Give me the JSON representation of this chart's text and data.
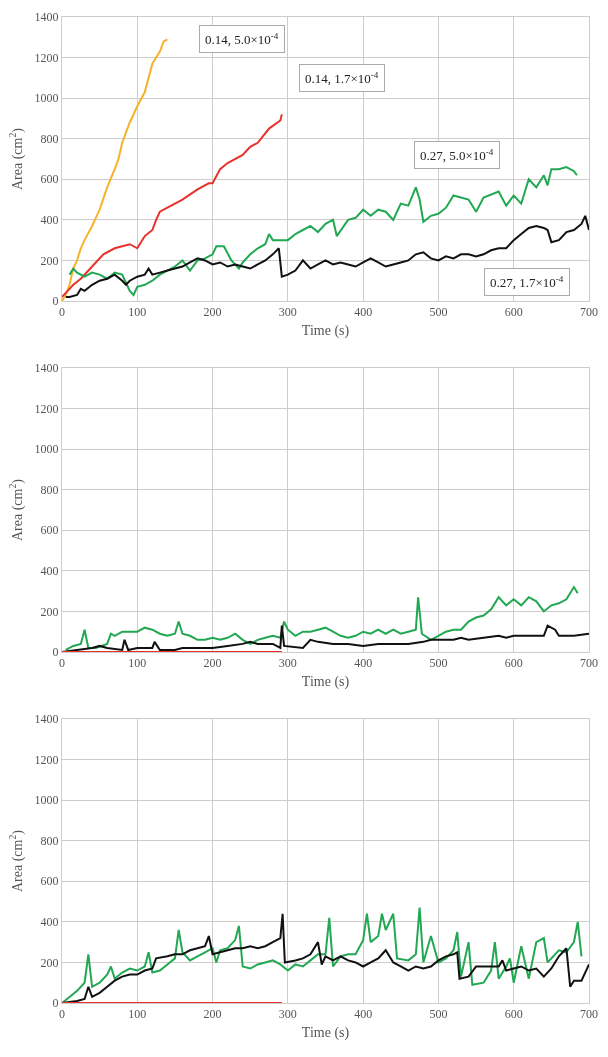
{
  "chart_data": [
    {
      "type": "line",
      "xlabel": "Time (s)",
      "ylabel": "Area (cm$^{2}$)",
      "xlim": [
        0,
        700
      ],
      "ylim": [
        0,
        1400
      ],
      "xticks": [
        0,
        100,
        200,
        300,
        400,
        500,
        600,
        700
      ],
      "yticks": [
        0,
        200,
        400,
        600,
        800,
        1000,
        1200,
        1400
      ],
      "grid": true,
      "legend": false,
      "marker": "none",
      "line_style": "solid",
      "series": [
        {
          "name": "0.14, 5.0×10$^{-4}$",
          "color": "#f5b22a",
          "x": [
            0,
            5,
            10,
            15,
            20,
            25,
            30,
            40,
            50,
            60,
            70,
            75,
            80,
            90,
            100,
            110,
            115,
            120,
            130,
            135,
            140
          ],
          "values": [
            0,
            30,
            80,
            160,
            200,
            260,
            300,
            370,
            450,
            560,
            650,
            700,
            780,
            880,
            960,
            1030,
            1100,
            1170,
            1230,
            1280,
            1290
          ]
        },
        {
          "name": "0.14, 1.7×10$^{-4}$",
          "color": "#e8312a",
          "x": [
            0,
            10,
            15,
            25,
            40,
            55,
            70,
            90,
            100,
            110,
            120,
            125,
            130,
            140,
            160,
            180,
            195,
            200,
            210,
            220,
            240,
            250,
            260,
            275,
            290,
            292
          ],
          "values": [
            20,
            60,
            80,
            110,
            170,
            230,
            260,
            280,
            260,
            320,
            350,
            400,
            440,
            460,
            500,
            550,
            580,
            580,
            650,
            680,
            720,
            760,
            780,
            850,
            890,
            920
          ]
        },
        {
          "name": "0.27, 5.0×10$^{-4}$",
          "color": "#22a852",
          "x": [
            10,
            15,
            20,
            30,
            40,
            50,
            60,
            70,
            80,
            90,
            95,
            100,
            110,
            120,
            130,
            140,
            150,
            160,
            170,
            180,
            190,
            200,
            205,
            215,
            225,
            235,
            240,
            250,
            260,
            270,
            275,
            280,
            300,
            310,
            320,
            330,
            340,
            350,
            360,
            365,
            380,
            390,
            400,
            410,
            420,
            430,
            440,
            450,
            460,
            470,
            475,
            480,
            490,
            500,
            510,
            520,
            540,
            550,
            560,
            580,
            590,
            600,
            610,
            620,
            630,
            640,
            645,
            650,
            660,
            670,
            680,
            684
          ],
          "values": [
            130,
            160,
            140,
            120,
            140,
            130,
            110,
            140,
            130,
            50,
            30,
            70,
            80,
            100,
            130,
            150,
            170,
            200,
            150,
            200,
            210,
            230,
            270,
            270,
            200,
            160,
            190,
            230,
            260,
            280,
            330,
            300,
            300,
            330,
            350,
            370,
            340,
            380,
            400,
            320,
            400,
            410,
            450,
            420,
            450,
            440,
            400,
            480,
            470,
            560,
            500,
            390,
            420,
            430,
            460,
            520,
            500,
            440,
            510,
            540,
            470,
            520,
            480,
            600,
            560,
            620,
            570,
            650,
            650,
            660,
            640,
            620
          ]
        },
        {
          "name": "0.27, 1.7×10$^{-4}$",
          "color": "#111111",
          "x": [
            5,
            10,
            20,
            25,
            30,
            40,
            50,
            60,
            70,
            80,
            85,
            90,
            100,
            110,
            115,
            120,
            130,
            140,
            150,
            160,
            170,
            180,
            190,
            200,
            210,
            220,
            230,
            240,
            250,
            260,
            270,
            280,
            288,
            292,
            300,
            310,
            320,
            330,
            340,
            350,
            360,
            370,
            380,
            390,
            400,
            410,
            420,
            430,
            440,
            450,
            460,
            470,
            480,
            490,
            500,
            510,
            520,
            530,
            540,
            550,
            560,
            570,
            580,
            590,
            600,
            610,
            620,
            630,
            640,
            645,
            650,
            660,
            670,
            680,
            690,
            695,
            700
          ],
          "values": [
            20,
            20,
            30,
            60,
            50,
            80,
            100,
            110,
            130,
            100,
            80,
            100,
            120,
            130,
            160,
            130,
            140,
            150,
            160,
            170,
            190,
            210,
            200,
            180,
            190,
            170,
            180,
            170,
            160,
            180,
            200,
            230,
            260,
            120,
            130,
            150,
            200,
            160,
            180,
            200,
            180,
            190,
            180,
            170,
            190,
            210,
            190,
            170,
            180,
            190,
            200,
            230,
            240,
            210,
            200,
            220,
            210,
            230,
            230,
            220,
            230,
            250,
            260,
            260,
            300,
            330,
            360,
            370,
            360,
            350,
            290,
            300,
            340,
            350,
            380,
            420,
            350
          ]
        }
      ]
    },
    {
      "type": "line",
      "xlabel": "Time (s)",
      "ylabel": "Area (cm$^{2}$)",
      "xlim": [
        0,
        700
      ],
      "ylim": [
        0,
        1400
      ],
      "xticks": [
        0,
        100,
        200,
        300,
        400,
        500,
        600,
        700
      ],
      "yticks": [
        0,
        200,
        400,
        600,
        800,
        1000,
        1200,
        1400
      ],
      "grid": true,
      "legend": false,
      "marker": "none",
      "line_style": "solid",
      "series": [
        {
          "color": "#22a852",
          "x": [
            5,
            15,
            25,
            30,
            35,
            45,
            60,
            65,
            70,
            80,
            90,
            100,
            110,
            120,
            130,
            140,
            150,
            155,
            160,
            170,
            180,
            190,
            200,
            210,
            220,
            230,
            240,
            250,
            260,
            270,
            280,
            290,
            295,
            300,
            310,
            320,
            330,
            340,
            350,
            360,
            370,
            380,
            390,
            400,
            410,
            420,
            430,
            440,
            450,
            460,
            470,
            473,
            478,
            490,
            500,
            510,
            520,
            530,
            540,
            550,
            560,
            570,
            580,
            590,
            600,
            610,
            620,
            630,
            640,
            650,
            660,
            670,
            680,
            685
          ],
          "values": [
            10,
            30,
            40,
            110,
            20,
            20,
            40,
            90,
            80,
            100,
            100,
            100,
            120,
            110,
            90,
            80,
            90,
            150,
            90,
            80,
            60,
            60,
            70,
            60,
            70,
            90,
            60,
            40,
            60,
            70,
            80,
            70,
            150,
            110,
            80,
            100,
            100,
            110,
            120,
            100,
            80,
            70,
            80,
            100,
            90,
            110,
            90,
            110,
            90,
            100,
            110,
            270,
            90,
            60,
            80,
            100,
            110,
            110,
            150,
            170,
            180,
            210,
            270,
            230,
            260,
            230,
            270,
            250,
            200,
            230,
            240,
            260,
            320,
            290
          ]
        },
        {
          "color": "#111111",
          "x": [
            0,
            20,
            40,
            50,
            60,
            80,
            83,
            88,
            100,
            120,
            123,
            130,
            150,
            160,
            180,
            200,
            220,
            240,
            250,
            260,
            280,
            290,
            292,
            295,
            320,
            330,
            340,
            360,
            380,
            400,
            420,
            440,
            460,
            480,
            490,
            500,
            520,
            530,
            540,
            560,
            580,
            590,
            600,
            620,
            640,
            645,
            655,
            660,
            680,
            700
          ],
          "values": [
            0,
            10,
            20,
            30,
            20,
            10,
            60,
            10,
            20,
            20,
            50,
            10,
            10,
            20,
            20,
            20,
            30,
            40,
            50,
            40,
            40,
            20,
            130,
            30,
            20,
            60,
            50,
            40,
            40,
            30,
            40,
            40,
            40,
            50,
            60,
            60,
            60,
            70,
            60,
            70,
            80,
            70,
            80,
            80,
            80,
            130,
            110,
            80,
            80,
            90
          ]
        },
        {
          "color": "#e8312a",
          "x": [
            0,
            292
          ],
          "values": [
            0,
            0
          ]
        }
      ]
    },
    {
      "type": "line",
      "xlabel": "Time (s)",
      "ylabel": "Area (cm$^{2}$)",
      "xlim": [
        0,
        700
      ],
      "ylim": [
        0,
        1400
      ],
      "xticks": [
        0,
        100,
        200,
        300,
        400,
        500,
        600,
        700
      ],
      "yticks": [
        0,
        200,
        400,
        600,
        800,
        1000,
        1200,
        1400
      ],
      "grid": true,
      "legend": false,
      "marker": "none",
      "line_style": "solid",
      "series": [
        {
          "color": "#22a852",
          "x": [
            0,
            10,
            20,
            30,
            35,
            40,
            50,
            60,
            65,
            70,
            80,
            90,
            100,
            110,
            115,
            120,
            130,
            140,
            150,
            155,
            160,
            170,
            180,
            190,
            200,
            205,
            210,
            220,
            230,
            235,
            240,
            250,
            260,
            270,
            280,
            290,
            300,
            310,
            320,
            330,
            340,
            350,
            355,
            360,
            370,
            380,
            390,
            400,
            405,
            410,
            420,
            425,
            430,
            440,
            445,
            460,
            470,
            475,
            480,
            490,
            500,
            510,
            520,
            525,
            530,
            540,
            545,
            560,
            570,
            575,
            580,
            590,
            595,
            600,
            610,
            620,
            630,
            640,
            645,
            660,
            670,
            680,
            685,
            690
          ],
          "values": [
            0,
            30,
            60,
            100,
            240,
            80,
            100,
            140,
            180,
            120,
            150,
            170,
            160,
            180,
            250,
            150,
            160,
            190,
            220,
            360,
            250,
            210,
            230,
            250,
            270,
            200,
            260,
            270,
            310,
            380,
            180,
            170,
            190,
            200,
            210,
            190,
            160,
            190,
            180,
            210,
            240,
            240,
            420,
            180,
            230,
            240,
            240,
            310,
            440,
            300,
            330,
            440,
            360,
            440,
            220,
            210,
            240,
            470,
            200,
            330,
            200,
            220,
            260,
            350,
            130,
            300,
            90,
            100,
            160,
            300,
            120,
            180,
            220,
            100,
            280,
            120,
            300,
            320,
            200,
            260,
            250,
            300,
            400,
            230
          ]
        },
        {
          "color": "#111111",
          "x": [
            0,
            20,
            30,
            35,
            40,
            50,
            60,
            70,
            80,
            90,
            100,
            110,
            120,
            125,
            140,
            150,
            160,
            170,
            180,
            190,
            195,
            200,
            210,
            220,
            230,
            240,
            250,
            260,
            270,
            280,
            290,
            293,
            296,
            310,
            320,
            330,
            340,
            345,
            350,
            360,
            370,
            380,
            390,
            400,
            410,
            420,
            430,
            440,
            450,
            460,
            470,
            480,
            490,
            500,
            510,
            520,
            525,
            528,
            540,
            550,
            570,
            580,
            585,
            590,
            600,
            610,
            620,
            630,
            640,
            650,
            660,
            670,
            675,
            680,
            690,
            700
          ],
          "values": [
            0,
            10,
            20,
            80,
            30,
            50,
            80,
            110,
            130,
            140,
            140,
            160,
            170,
            220,
            230,
            240,
            240,
            260,
            270,
            280,
            330,
            240,
            250,
            260,
            270,
            270,
            280,
            270,
            280,
            300,
            320,
            440,
            200,
            210,
            220,
            240,
            300,
            190,
            230,
            210,
            230,
            210,
            200,
            180,
            200,
            220,
            260,
            200,
            180,
            160,
            180,
            170,
            180,
            210,
            230,
            240,
            250,
            120,
            130,
            180,
            180,
            180,
            210,
            160,
            170,
            180,
            160,
            170,
            130,
            170,
            230,
            270,
            80,
            110,
            110,
            190
          ]
        },
        {
          "color": "#e8312a",
          "x": [
            0,
            292
          ],
          "values": [
            0,
            0
          ]
        }
      ]
    }
  ]
}
